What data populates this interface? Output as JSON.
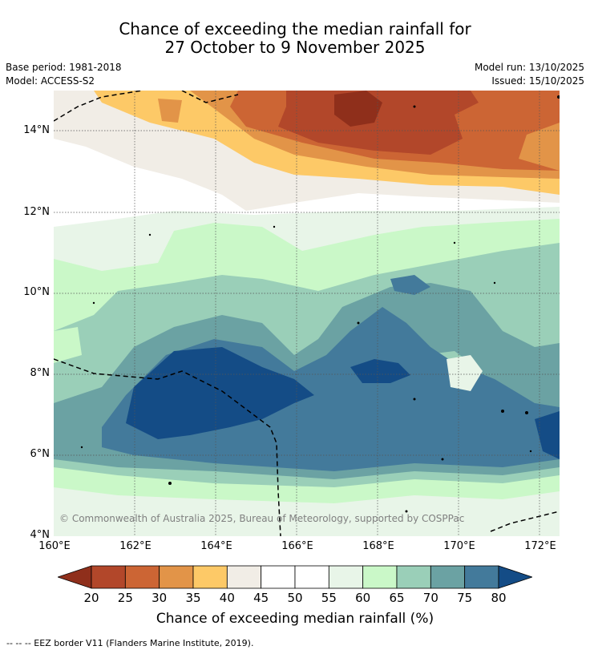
{
  "title_line1": "Chance of exceeding the median rainfall for",
  "title_line2": "27 October to 9 November 2025",
  "base_period": "Base period: 1981-2018",
  "model": "Model: ACCESS-S2",
  "model_run": "Model run: 13/10/2025",
  "issued": "Issued: 15/10/2025",
  "copyright": "© Commonwealth of Australia 2025, Bureau of Meteorology, supported by COSPPac",
  "map": {
    "lat_labels": [
      "14°N",
      "12°N",
      "10°N",
      "8°N",
      "6°N",
      "4°N"
    ],
    "lon_labels": [
      "160°E",
      "162°E",
      "164°E",
      "166°E",
      "168°E",
      "170°E",
      "172°E"
    ],
    "lat_range": [
      4,
      15
    ],
    "lon_range": [
      160,
      172.5
    ]
  },
  "colorbar": {
    "ticks": [
      "20",
      "25",
      "30",
      "35",
      "40",
      "45",
      "50",
      "55",
      "60",
      "65",
      "70",
      "75",
      "80"
    ],
    "colors": [
      "#8f2f1b",
      "#b2472a",
      "#cc6534",
      "#e29448",
      "#fdc967",
      "#f1ede6",
      "#ffffff",
      "#ffffff",
      "#e8f5e8",
      "#caf8c8",
      "#9acfb8",
      "#6ba2a3",
      "#437a9b",
      "#144c86"
    ],
    "label": "Chance of exceeding median rainfall (%)"
  },
  "footnote": "-- -- -- EEZ border V11 (Flanders Marine Institute, 2019)."
}
